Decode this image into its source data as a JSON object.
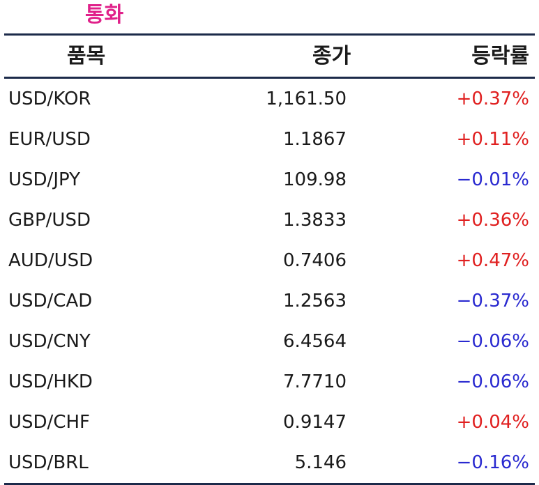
{
  "title": "통화",
  "header": {
    "item": "품목",
    "close": "종가",
    "change": "등락률"
  },
  "rows": [
    {
      "item": "USD/KOR",
      "close": "1,161.50",
      "change": "+0.37%"
    },
    {
      "item": "EUR/USD",
      "close": "1.1867",
      "change": "+0.11%"
    },
    {
      "item": "USD/JPY",
      "close": "109.98",
      "change": "−0.01%"
    },
    {
      "item": "GBP/USD",
      "close": "1.3833",
      "change": "+0.36%"
    },
    {
      "item": "AUD/USD",
      "close": "0.7406",
      "change": "+0.47%"
    },
    {
      "item": "USD/CAD",
      "close": "1.2563",
      "change": "−0.37%"
    },
    {
      "item": "USD/CNY",
      "close": "6.4564",
      "change": "−0.06%"
    },
    {
      "item": "USD/HKD",
      "close": "7.7710",
      "change": "−0.06%"
    },
    {
      "item": "USD/CHF",
      "close": "0.9147",
      "change": "+0.04%"
    },
    {
      "item": "USD/BRL",
      "close": "5.146",
      "change": "−0.16%"
    }
  ],
  "colors": {
    "title": "#e0218a",
    "rule": "#1c2a4a",
    "positive": "#e02020",
    "negative": "#2a2ad0"
  }
}
